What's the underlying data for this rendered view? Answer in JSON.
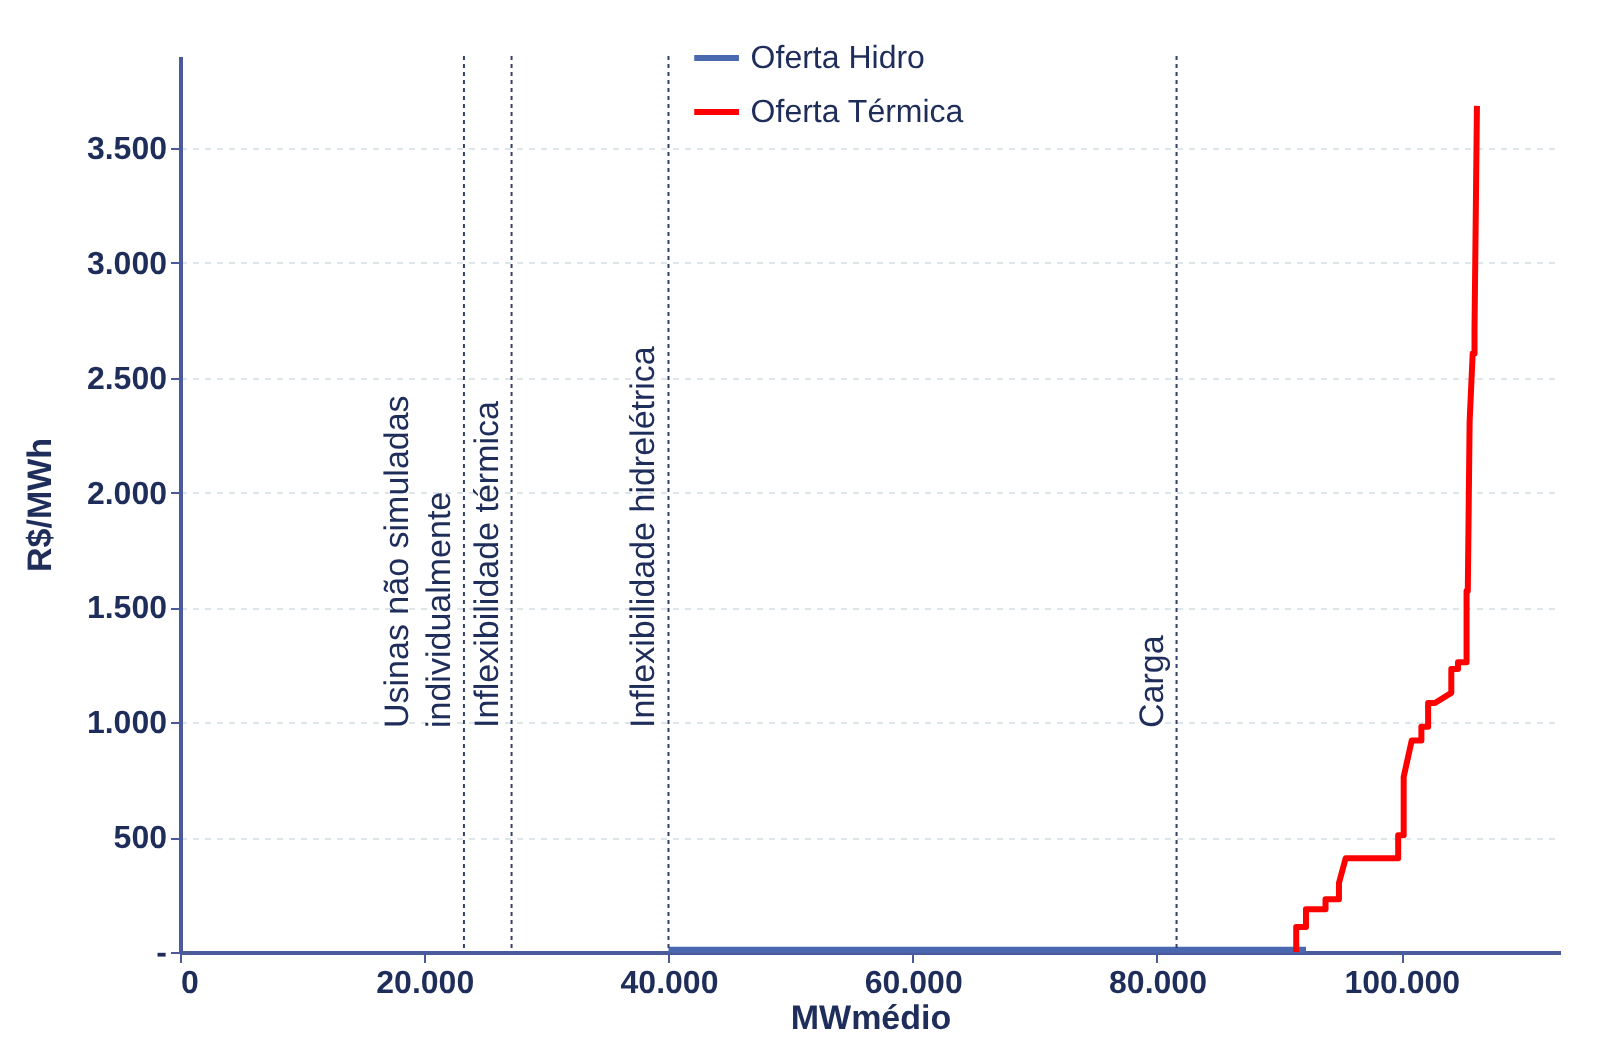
{
  "chart_data": {
    "type": "line",
    "xlabel": "MWmédio",
    "ylabel": "R$/MWh",
    "xlim": [
      0,
      113000
    ],
    "ylim": [
      0,
      3900
    ],
    "xticks": [
      {
        "value": 0,
        "label": "0"
      },
      {
        "value": 20000,
        "label": "20.000"
      },
      {
        "value": 40000,
        "label": "40.000"
      },
      {
        "value": 60000,
        "label": "60.000"
      },
      {
        "value": 80000,
        "label": "80.000"
      },
      {
        "value": 100000,
        "label": "100.000"
      }
    ],
    "yticks": [
      {
        "value": 0,
        "label": "-"
      },
      {
        "value": 500,
        "label": "500"
      },
      {
        "value": 1000,
        "label": "1.000"
      },
      {
        "value": 1500,
        "label": "1.500"
      },
      {
        "value": 2000,
        "label": "2.000"
      },
      {
        "value": 2500,
        "label": "2.500"
      },
      {
        "value": 3000,
        "label": "3.000"
      },
      {
        "value": 3500,
        "label": "3.500"
      }
    ],
    "grid": "y",
    "legend": "top",
    "marker": "none",
    "series": [
      {
        "name": "Oferta Hidro",
        "color": "#4a68b0",
        "x": [
          40000,
          92200
        ],
        "values": [
          10,
          10
        ]
      },
      {
        "name": "Oferta Térmica",
        "color": "#ff0000",
        "x": [
          91400,
          91400,
          92200,
          92200,
          93800,
          93800,
          94900,
          94900,
          95450,
          98950,
          99750,
          99750,
          100200,
          100200,
          100860,
          101650,
          101650,
          102200,
          102200,
          102760,
          104100,
          104100,
          104650,
          104650,
          105350,
          105350,
          105450,
          105600,
          105850,
          106000,
          106000,
          106200
        ],
        "values": [
          0,
          109,
          109,
          186,
          186,
          230,
          230,
          300,
          408,
          408,
          408,
          508,
          508,
          762,
          921,
          921,
          980,
          980,
          1084,
          1084,
          1128,
          1232,
          1232,
          1261,
          1261,
          1571,
          1571,
          2310,
          2605,
          2605,
          2711,
          3683
        ]
      }
    ],
    "ref_lines": [
      {
        "axis": "x",
        "value": 23250,
        "label": "Usinas não simuladas\nindividualmente",
        "color": "#34406e",
        "line_style": "dotted"
      },
      {
        "axis": "x",
        "value": 27150,
        "label": "Inflexibilidade térmica",
        "color": "#34406e",
        "line_style": "dotted"
      },
      {
        "axis": "x",
        "value": 40000,
        "label": "Inflexibilidade hidrelétrica",
        "color": "#34406e",
        "line_style": "dotted"
      },
      {
        "axis": "x",
        "value": 81600,
        "label": "Carga",
        "color": "#34406e",
        "line_style": "dotted"
      }
    ]
  }
}
